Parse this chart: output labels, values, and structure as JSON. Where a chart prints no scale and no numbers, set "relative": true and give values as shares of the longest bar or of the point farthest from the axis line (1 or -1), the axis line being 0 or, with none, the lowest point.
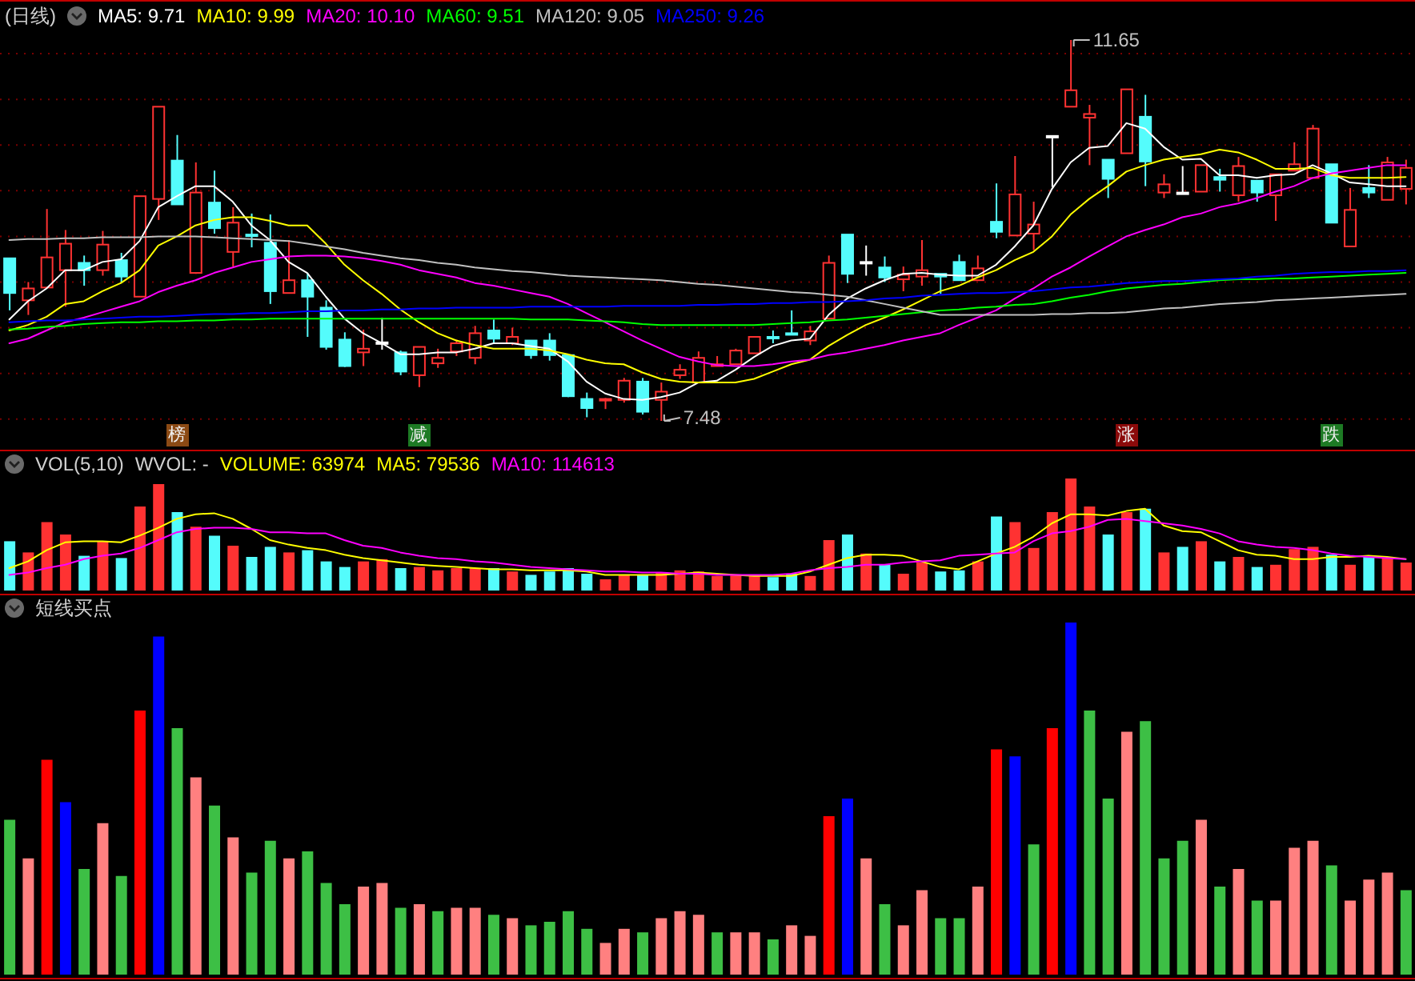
{
  "chart_data": [
    {
      "type": "candlestick",
      "title": "(日线)",
      "legend": "top left",
      "tick_labels": false,
      "grid": "y",
      "categories": [
        null,
        null,
        null,
        null,
        null,
        null,
        null,
        null,
        null,
        null,
        null,
        null,
        null,
        null,
        null,
        null,
        null,
        null,
        null,
        null,
        null,
        null,
        null,
        null,
        null,
        null,
        null,
        null,
        null,
        null,
        null,
        null,
        null,
        null,
        null,
        null,
        null,
        null,
        null,
        null,
        null,
        null,
        null,
        null,
        null,
        null,
        null,
        null,
        null,
        null,
        null,
        null,
        null,
        null,
        null,
        null,
        null,
        null,
        null,
        null,
        null,
        null,
        null,
        null,
        null,
        null,
        null,
        null,
        null,
        null,
        null,
        null,
        null,
        null,
        null,
        null
      ],
      "yticks": [
        {
          "value": 7.5,
          "label": null
        },
        {
          "value": 8,
          "label": null
        },
        {
          "value": 8.5,
          "label": null
        },
        {
          "value": 9,
          "label": null
        },
        {
          "value": 9.5,
          "label": null
        },
        {
          "value": 10,
          "label": null
        },
        {
          "value": 10.5,
          "label": null
        },
        {
          "value": 11,
          "label": null
        },
        {
          "value": 11.5,
          "label": null
        }
      ],
      "ohlc": [
        [
          9.26,
          9.26,
          8.69,
          8.88
        ],
        [
          8.8,
          9.0,
          8.64,
          8.93
        ],
        [
          8.94,
          9.8,
          8.94,
          9.27
        ],
        [
          9.13,
          9.57,
          8.73,
          9.42
        ],
        [
          9.21,
          9.29,
          8.96,
          9.13
        ],
        [
          9.13,
          9.56,
          9.07,
          9.41
        ],
        [
          9.24,
          9.32,
          8.99,
          9.06
        ],
        [
          8.84,
          9.94,
          8.84,
          9.94
        ],
        [
          9.91,
          10.92,
          9.68,
          10.92
        ],
        [
          10.33,
          10.61,
          9.85,
          9.85
        ],
        [
          9.1,
          10.31,
          9.09,
          9.98
        ],
        [
          9.87,
          10.22,
          9.53,
          9.59
        ],
        [
          9.33,
          9.82,
          9.17,
          9.65
        ],
        [
          9.52,
          9.75,
          9.38,
          9.52
        ],
        [
          9.43,
          9.74,
          8.76,
          8.9
        ],
        [
          8.88,
          9.46,
          8.88,
          9.02
        ],
        [
          9.02,
          9.1,
          8.4,
          8.84
        ],
        [
          8.72,
          8.8,
          8.26,
          8.29
        ],
        [
          8.37,
          8.45,
          8.07,
          8.08
        ],
        [
          8.23,
          8.48,
          8.08,
          8.27
        ],
        [
          8.34,
          8.61,
          8.26,
          8.34
        ],
        [
          8.23,
          8.25,
          7.98,
          8.02
        ],
        [
          7.98,
          8.29,
          7.85,
          8.29
        ],
        [
          8.11,
          8.27,
          8.06,
          8.17
        ],
        [
          8.24,
          8.37,
          8.19,
          8.33
        ],
        [
          8.17,
          8.52,
          8.1,
          8.44
        ],
        [
          8.47,
          8.59,
          8.33,
          8.38
        ],
        [
          8.33,
          8.5,
          8.31,
          8.4
        ],
        [
          8.36,
          8.36,
          8.16,
          8.2
        ],
        [
          8.36,
          8.44,
          8.14,
          8.2
        ],
        [
          8.2,
          8.2,
          7.74,
          7.75
        ],
        [
          7.72,
          7.79,
          7.52,
          7.62
        ],
        [
          7.71,
          7.73,
          7.61,
          7.72
        ],
        [
          7.71,
          7.95,
          7.68,
          7.92
        ],
        [
          7.91,
          7.95,
          7.55,
          7.58
        ],
        [
          7.71,
          7.9,
          7.48,
          7.8
        ],
        [
          7.98,
          8.1,
          7.94,
          8.04
        ],
        [
          7.9,
          8.24,
          7.9,
          8.17
        ],
        [
          8.08,
          8.19,
          8.08,
          8.1
        ],
        [
          8.1,
          8.27,
          8.1,
          8.25
        ],
        [
          8.22,
          8.4,
          8.22,
          8.4
        ],
        [
          8.4,
          8.47,
          8.33,
          8.4
        ],
        [
          8.44,
          8.69,
          8.44,
          8.44
        ],
        [
          8.36,
          8.52,
          8.31,
          8.46
        ],
        [
          8.6,
          9.29,
          8.6,
          9.21
        ],
        [
          9.52,
          9.52,
          8.99,
          9.09
        ],
        [
          9.22,
          9.4,
          9.07,
          9.22
        ],
        [
          9.16,
          9.28,
          9.0,
          9.05
        ],
        [
          9.03,
          9.17,
          8.9,
          9.08
        ],
        [
          9.06,
          9.46,
          8.96,
          9.13
        ],
        [
          9.09,
          9.09,
          8.87,
          9.06
        ],
        [
          9.22,
          9.3,
          9.02,
          9.02
        ],
        [
          9.02,
          9.29,
          9.02,
          9.15
        ],
        [
          9.66,
          10.08,
          9.48,
          9.55
        ],
        [
          9.51,
          10.38,
          9.51,
          9.96
        ],
        [
          9.53,
          9.88,
          9.35,
          9.63
        ],
        [
          10.6,
          10.6,
          10.04,
          10.6
        ],
        [
          10.92,
          11.65,
          10.92,
          11.1
        ],
        [
          10.8,
          10.94,
          10.28,
          10.84
        ],
        [
          10.34,
          10.34,
          9.92,
          10.13
        ],
        [
          10.41,
          11.11,
          10.41,
          11.11
        ],
        [
          10.81,
          11.05,
          10.05,
          10.32
        ],
        [
          9.98,
          10.18,
          9.92,
          10.07
        ],
        [
          9.98,
          10.27,
          9.98,
          9.98
        ],
        [
          9.99,
          10.28,
          9.99,
          10.28
        ],
        [
          10.15,
          10.24,
          9.99,
          10.12
        ],
        [
          9.95,
          10.37,
          9.88,
          10.27
        ],
        [
          10.11,
          10.11,
          9.88,
          9.98
        ],
        [
          9.95,
          10.18,
          9.67,
          10.18
        ],
        [
          10.22,
          10.53,
          10.22,
          10.29
        ],
        [
          10.14,
          10.72,
          10.14,
          10.68
        ],
        [
          10.29,
          10.29,
          9.65,
          9.65
        ],
        [
          9.39,
          10.03,
          9.39,
          9.79
        ],
        [
          10.03,
          10.28,
          9.92,
          9.98
        ],
        [
          9.9,
          10.37,
          9.9,
          10.31
        ],
        [
          10.02,
          10.34,
          9.85,
          10.25
        ]
      ],
      "colors": [
        "#54fcfc",
        "#ff3232",
        "#ff3232",
        "#ff3232",
        "#54fcfc",
        "#ff3232",
        "#54fcfc",
        "#ff3232",
        "#ff3232",
        "#54fcfc",
        "#ff3232",
        "#54fcfc",
        "#ff3232",
        "#54fcfc",
        "#54fcfc",
        "#ff3232",
        "#54fcfc",
        "#54fcfc",
        "#54fcfc",
        "#ff3232",
        "#ffffff",
        "#54fcfc",
        "#ff3232",
        "#ff3232",
        "#ff3232",
        "#ff3232",
        "#54fcfc",
        "#ff3232",
        "#54fcfc",
        "#54fcfc",
        "#54fcfc",
        "#54fcfc",
        "#ff3232",
        "#ff3232",
        "#54fcfc",
        "#ff3232",
        "#ff3232",
        "#ff3232",
        "#ff3232",
        "#ff3232",
        "#ff3232",
        "#54fcfc",
        "#54fcfc",
        "#ff3232",
        "#ff3232",
        "#54fcfc",
        "#ffffff",
        "#54fcfc",
        "#ff3232",
        "#ff3232",
        "#54fcfc",
        "#54fcfc",
        "#ff3232",
        "#54fcfc",
        "#ff3232",
        "#ff3232",
        "#ffffff",
        "#ff3232",
        "#ff3232",
        "#54fcfc",
        "#ff3232",
        "#54fcfc",
        "#ff3232",
        "#ffffff",
        "#ff3232",
        "#54fcfc",
        "#ff3232",
        "#54fcfc",
        "#ff3232",
        "#ff3232",
        "#ff3232",
        "#54fcfc",
        "#ff3232",
        "#54fcfc",
        "#ff3232",
        "#ff3232"
      ],
      "series": [
        {
          "name": "MA5: 9.71",
          "type": "line",
          "color": "#ffffff",
          "values": [
            8.59,
            8.79,
            8.93,
            9.13,
            9.13,
            9.22,
            9.25,
            9.45,
            9.82,
            9.94,
            10.05,
            10.05,
            9.88,
            9.62,
            9.46,
            9.22,
            9.1,
            8.84,
            8.6,
            8.44,
            8.33,
            8.21,
            8.21,
            8.23,
            8.23,
            8.27,
            8.33,
            8.33,
            8.3,
            8.27,
            8.13,
            7.91,
            7.78,
            7.72,
            7.71,
            7.74,
            7.79,
            7.9,
            7.92,
            8.04,
            8.18,
            8.3,
            8.36,
            8.38,
            8.64,
            8.82,
            8.93,
            9.02,
            9.09,
            9.1,
            9.08,
            9.07,
            9.07,
            9.19,
            9.39,
            9.62,
            10.02,
            10.31,
            10.47,
            10.49,
            10.74,
            10.68,
            10.48,
            10.34,
            10.35,
            10.17,
            10.17,
            10.14,
            10.17,
            10.18,
            10.28,
            10.19,
            10.09,
            10.07,
            10.05,
            10.05
          ]
        },
        {
          "name": "MA10: 9.99",
          "type": "line",
          "color": "#ffff00",
          "values": [
            8.47,
            8.53,
            8.62,
            8.76,
            8.79,
            8.9,
            8.99,
            9.13,
            9.4,
            9.5,
            9.62,
            9.68,
            9.71,
            9.71,
            9.67,
            9.62,
            9.62,
            9.42,
            9.19,
            9.02,
            8.87,
            8.7,
            8.56,
            8.44,
            8.36,
            8.31,
            8.27,
            8.27,
            8.27,
            8.25,
            8.21,
            8.15,
            8.11,
            8.1,
            8.01,
            7.94,
            7.91,
            7.9,
            7.9,
            7.9,
            7.94,
            8.02,
            8.1,
            8.15,
            8.3,
            8.42,
            8.53,
            8.61,
            8.7,
            8.8,
            8.9,
            8.96,
            9.05,
            9.13,
            9.24,
            9.33,
            9.5,
            9.74,
            9.91,
            10.05,
            10.21,
            10.28,
            10.34,
            10.37,
            10.4,
            10.45,
            10.42,
            10.34,
            10.24,
            10.24,
            10.25,
            10.17,
            10.14,
            10.14,
            10.14,
            10.15
          ]
        },
        {
          "name": "MA20: 10.10",
          "type": "line",
          "color": "#ff00ff",
          "values": [
            8.33,
            8.38,
            8.47,
            8.56,
            8.61,
            8.67,
            8.73,
            8.79,
            8.89,
            8.96,
            9.02,
            9.1,
            9.16,
            9.22,
            9.25,
            9.28,
            9.29,
            9.29,
            9.28,
            9.26,
            9.23,
            9.19,
            9.13,
            9.09,
            9.05,
            8.99,
            8.96,
            8.92,
            8.88,
            8.84,
            8.76,
            8.66,
            8.56,
            8.46,
            8.36,
            8.27,
            8.18,
            8.13,
            8.09,
            8.08,
            8.08,
            8.1,
            8.13,
            8.15,
            8.2,
            8.23,
            8.27,
            8.31,
            8.36,
            8.4,
            8.44,
            8.53,
            8.61,
            8.69,
            8.82,
            8.93,
            9.06,
            9.16,
            9.28,
            9.39,
            9.5,
            9.57,
            9.63,
            9.71,
            9.75,
            9.82,
            9.86,
            9.92,
            9.99,
            10.05,
            10.14,
            10.19,
            10.22,
            10.25,
            10.28,
            10.28
          ]
        },
        {
          "name": "MA60: 9.51",
          "type": "line",
          "color": "#00ff00",
          "values": [
            8.48,
            8.49,
            8.51,
            8.52,
            8.54,
            8.55,
            8.56,
            8.56,
            8.57,
            8.57,
            8.58,
            8.58,
            8.59,
            8.59,
            8.6,
            8.6,
            8.6,
            8.6,
            8.6,
            8.6,
            8.6,
            8.6,
            8.6,
            8.6,
            8.6,
            8.6,
            8.6,
            8.6,
            8.59,
            8.59,
            8.59,
            8.58,
            8.57,
            8.56,
            8.54,
            8.53,
            8.53,
            8.53,
            8.53,
            8.53,
            8.53,
            8.54,
            8.55,
            8.56,
            8.58,
            8.59,
            8.61,
            8.63,
            8.65,
            8.67,
            8.69,
            8.7,
            8.72,
            8.73,
            8.75,
            8.76,
            8.79,
            8.83,
            8.86,
            8.9,
            8.93,
            8.95,
            8.97,
            8.98,
            9.0,
            9.02,
            9.03,
            9.03,
            9.04,
            9.04,
            9.05,
            9.06,
            9.07,
            9.08,
            9.09,
            9.1
          ]
        },
        {
          "name": "MA120: 9.05",
          "type": "line",
          "color": "#c0c0c0",
          "values": [
            9.46,
            9.47,
            9.47,
            9.48,
            9.48,
            9.49,
            9.49,
            9.49,
            9.5,
            9.5,
            9.5,
            9.49,
            9.48,
            9.47,
            9.46,
            9.45,
            9.42,
            9.39,
            9.36,
            9.32,
            9.29,
            9.26,
            9.24,
            9.21,
            9.19,
            9.16,
            9.14,
            9.12,
            9.11,
            9.09,
            9.07,
            9.06,
            9.05,
            9.04,
            9.03,
            9.02,
            9.0,
            8.98,
            8.97,
            8.95,
            8.93,
            8.91,
            8.89,
            8.88,
            8.86,
            8.84,
            8.8,
            8.76,
            8.72,
            8.68,
            8.64,
            8.64,
            8.64,
            8.64,
            8.64,
            8.64,
            8.65,
            8.65,
            8.66,
            8.66,
            8.67,
            8.69,
            8.71,
            8.72,
            8.74,
            8.76,
            8.77,
            8.78,
            8.8,
            8.81,
            8.82,
            8.83,
            8.84,
            8.85,
            8.86,
            8.87
          ]
        },
        {
          "name": "MA250: 9.26",
          "type": "line",
          "color": "#0000ff",
          "values": [
            8.56,
            8.57,
            8.58,
            8.58,
            8.59,
            8.6,
            8.61,
            8.62,
            8.62,
            8.63,
            8.64,
            8.65,
            8.65,
            8.66,
            8.66,
            8.67,
            8.68,
            8.68,
            8.69,
            8.69,
            8.7,
            8.7,
            8.71,
            8.71,
            8.72,
            8.72,
            8.72,
            8.72,
            8.73,
            8.73,
            8.73,
            8.73,
            8.73,
            8.74,
            8.74,
            8.74,
            8.74,
            8.75,
            8.75,
            8.76,
            8.76,
            8.77,
            8.77,
            8.78,
            8.78,
            8.79,
            8.8,
            8.82,
            8.83,
            8.85,
            8.86,
            8.87,
            8.88,
            8.88,
            8.89,
            8.9,
            8.92,
            8.94,
            8.95,
            8.97,
            8.99,
            9.0,
            9.01,
            9.01,
            9.02,
            9.03,
            9.04,
            9.06,
            9.07,
            9.09,
            9.1,
            9.11,
            9.11,
            9.12,
            9.12,
            9.13
          ]
        }
      ],
      "annotations": [
        "11.65",
        "7.48",
        "榜",
        "减",
        "涨",
        "跌"
      ]
    },
    {
      "type": "bar",
      "title": "VOL(5,10)",
      "legend": "top left",
      "tick_labels": false,
      "relative": true,
      "categories": [
        null,
        null,
        null,
        null,
        null,
        null,
        null,
        null,
        null,
        null,
        null,
        null,
        null,
        null,
        null,
        null,
        null,
        null,
        null,
        null,
        null,
        null,
        null,
        null,
        null,
        null,
        null,
        null,
        null,
        null,
        null,
        null,
        null,
        null,
        null,
        null,
        null,
        null,
        null,
        null,
        null,
        null,
        null,
        null,
        null,
        null,
        null,
        null,
        null,
        null,
        null,
        null,
        null,
        null,
        null,
        null,
        null,
        null,
        null,
        null,
        null,
        null,
        null,
        null,
        null,
        null,
        null,
        null,
        null,
        null,
        null,
        null,
        null,
        null,
        null,
        null
      ],
      "annotations": [
        "WVOL: -",
        "VOLUME: 63974"
      ],
      "series": [
        {
          "type": "bar",
          "values": [
            0.44,
            0.34,
            0.61,
            0.5,
            0.31,
            0.44,
            0.29,
            0.75,
            0.95,
            0.7,
            0.57,
            0.49,
            0.4,
            0.3,
            0.39,
            0.34,
            0.36,
            0.26,
            0.21,
            0.26,
            0.28,
            0.2,
            0.21,
            0.18,
            0.2,
            0.2,
            0.2,
            0.17,
            0.14,
            0.17,
            0.2,
            0.15,
            0.1,
            0.14,
            0.14,
            0.16,
            0.18,
            0.17,
            0.13,
            0.14,
            0.14,
            0.12,
            0.15,
            0.13,
            0.45,
            0.5,
            0.33,
            0.23,
            0.15,
            0.25,
            0.17,
            0.18,
            0.26,
            0.66,
            0.61,
            0.38,
            0.7,
            1.0,
            0.75,
            0.5,
            0.7,
            0.73,
            0.34,
            0.39,
            0.44,
            0.26,
            0.3,
            0.21,
            0.23,
            0.37,
            0.39,
            0.32,
            0.23,
            0.3,
            0.29,
            0.25
          ],
          "colors": [
            "#54fcfc",
            "#ff3232",
            "#ff3232",
            "#ff3232",
            "#54fcfc",
            "#ff3232",
            "#54fcfc",
            "#ff3232",
            "#ff3232",
            "#54fcfc",
            "#ff3232",
            "#54fcfc",
            "#ff3232",
            "#54fcfc",
            "#54fcfc",
            "#ff3232",
            "#54fcfc",
            "#54fcfc",
            "#54fcfc",
            "#ff3232",
            "#ff3232",
            "#54fcfc",
            "#ff3232",
            "#ff3232",
            "#ff3232",
            "#ff3232",
            "#54fcfc",
            "#ff3232",
            "#54fcfc",
            "#54fcfc",
            "#54fcfc",
            "#54fcfc",
            "#ff3232",
            "#ff3232",
            "#54fcfc",
            "#ff3232",
            "#ff3232",
            "#ff3232",
            "#ff3232",
            "#ff3232",
            "#ff3232",
            "#54fcfc",
            "#54fcfc",
            "#ff3232",
            "#ff3232",
            "#54fcfc",
            "#ff3232",
            "#54fcfc",
            "#ff3232",
            "#ff3232",
            "#54fcfc",
            "#54fcfc",
            "#ff3232",
            "#54fcfc",
            "#ff3232",
            "#ff3232",
            "#ff3232",
            "#ff3232",
            "#ff3232",
            "#54fcfc",
            "#ff3232",
            "#54fcfc",
            "#ff3232",
            "#54fcfc",
            "#ff3232",
            "#54fcfc",
            "#ff3232",
            "#54fcfc",
            "#ff3232",
            "#ff3232",
            "#ff3232",
            "#54fcfc",
            "#ff3232",
            "#54fcfc",
            "#ff3232",
            "#ff3232"
          ]
        },
        {
          "name": "MA5: 79536",
          "type": "line",
          "color": "#ffff00",
          "values": [
            0.2,
            0.26,
            0.36,
            0.43,
            0.44,
            0.44,
            0.43,
            0.49,
            0.56,
            0.64,
            0.68,
            0.69,
            0.64,
            0.55,
            0.45,
            0.41,
            0.38,
            0.36,
            0.32,
            0.29,
            0.27,
            0.25,
            0.23,
            0.22,
            0.21,
            0.2,
            0.19,
            0.19,
            0.18,
            0.18,
            0.18,
            0.17,
            0.14,
            0.14,
            0.14,
            0.14,
            0.15,
            0.16,
            0.15,
            0.14,
            0.13,
            0.13,
            0.13,
            0.17,
            0.23,
            0.29,
            0.32,
            0.32,
            0.31,
            0.26,
            0.21,
            0.19,
            0.26,
            0.33,
            0.39,
            0.48,
            0.6,
            0.68,
            0.68,
            0.67,
            0.71,
            0.73,
            0.58,
            0.53,
            0.52,
            0.44,
            0.36,
            0.32,
            0.31,
            0.28,
            0.28,
            0.3,
            0.3,
            0.31,
            0.3,
            0.28
          ]
        },
        {
          "name": "MA10: 114613",
          "type": "line",
          "color": "#ff00ff",
          "values": [
            0.14,
            0.16,
            0.2,
            0.23,
            0.28,
            0.31,
            0.33,
            0.38,
            0.45,
            0.52,
            0.55,
            0.56,
            0.56,
            0.55,
            0.52,
            0.52,
            0.51,
            0.51,
            0.45,
            0.4,
            0.38,
            0.34,
            0.31,
            0.29,
            0.28,
            0.26,
            0.25,
            0.23,
            0.21,
            0.2,
            0.19,
            0.18,
            0.17,
            0.17,
            0.16,
            0.16,
            0.15,
            0.15,
            0.14,
            0.14,
            0.14,
            0.14,
            0.15,
            0.18,
            0.2,
            0.21,
            0.23,
            0.23,
            0.25,
            0.26,
            0.27,
            0.31,
            0.32,
            0.33,
            0.34,
            0.44,
            0.51,
            0.53,
            0.57,
            0.63,
            0.64,
            0.62,
            0.6,
            0.58,
            0.55,
            0.51,
            0.44,
            0.41,
            0.39,
            0.38,
            0.36,
            0.33,
            0.31,
            0.3,
            0.29,
            0.28
          ]
        }
      ]
    },
    {
      "type": "bar",
      "title": "短线买点",
      "tick_labels": false,
      "relative": true,
      "categories": [
        null,
        null,
        null,
        null,
        null,
        null,
        null,
        null,
        null,
        null,
        null,
        null,
        null,
        null,
        null,
        null,
        null,
        null,
        null,
        null,
        null,
        null,
        null,
        null,
        null,
        null,
        null,
        null,
        null,
        null,
        null,
        null,
        null,
        null,
        null,
        null,
        null,
        null,
        null,
        null,
        null,
        null,
        null,
        null,
        null,
        null,
        null,
        null,
        null,
        null,
        null,
        null,
        null,
        null,
        null,
        null,
        null,
        null,
        null,
        null,
        null,
        null,
        null,
        null,
        null,
        null,
        null,
        null,
        null,
        null,
        null,
        null,
        null,
        null,
        null,
        null
      ],
      "values": [
        0.44,
        0.33,
        0.61,
        0.49,
        0.3,
        0.43,
        0.28,
        0.75,
        0.96,
        0.7,
        0.56,
        0.48,
        0.39,
        0.29,
        0.38,
        0.33,
        0.35,
        0.26,
        0.2,
        0.25,
        0.26,
        0.19,
        0.2,
        0.18,
        0.19,
        0.19,
        0.17,
        0.16,
        0.14,
        0.15,
        0.18,
        0.13,
        0.09,
        0.13,
        0.12,
        0.16,
        0.18,
        0.17,
        0.12,
        0.12,
        0.12,
        0.1,
        0.14,
        0.11,
        0.45,
        0.5,
        0.33,
        0.2,
        0.14,
        0.24,
        0.16,
        0.16,
        0.25,
        0.64,
        0.62,
        0.37,
        0.7,
        1.0,
        0.75,
        0.5,
        0.69,
        0.72,
        0.33,
        0.38,
        0.44,
        0.25,
        0.3,
        0.21,
        0.21,
        0.36,
        0.38,
        0.31,
        0.21,
        0.27,
        0.29,
        0.24
      ],
      "colors": [
        "#3dbf45",
        "#ff8080",
        "#ff0000",
        "#0000ff",
        "#3dbf45",
        "#ff8080",
        "#3dbf45",
        "#ff0000",
        "#0000ff",
        "#3dbf45",
        "#ff8080",
        "#3dbf45",
        "#ff8080",
        "#3dbf45",
        "#3dbf45",
        "#ff8080",
        "#3dbf45",
        "#3dbf45",
        "#3dbf45",
        "#ff8080",
        "#ff8080",
        "#3dbf45",
        "#ff8080",
        "#3dbf45",
        "#ff8080",
        "#ff8080",
        "#3dbf45",
        "#ff8080",
        "#3dbf45",
        "#3dbf45",
        "#3dbf45",
        "#3dbf45",
        "#ff8080",
        "#ff8080",
        "#3dbf45",
        "#ff8080",
        "#ff8080",
        "#ff8080",
        "#3dbf45",
        "#ff8080",
        "#ff8080",
        "#3dbf45",
        "#ff8080",
        "#ff8080",
        "#ff0000",
        "#0000ff",
        "#ff8080",
        "#3dbf45",
        "#ff8080",
        "#ff8080",
        "#3dbf45",
        "#3dbf45",
        "#ff8080",
        "#ff0000",
        "#0000ff",
        "#3dbf45",
        "#ff0000",
        "#0000ff",
        "#3dbf45",
        "#3dbf45",
        "#ff8080",
        "#3dbf45",
        "#3dbf45",
        "#3dbf45",
        "#ff8080",
        "#3dbf45",
        "#ff8080",
        "#3dbf45",
        "#ff8080",
        "#ff8080",
        "#ff8080",
        "#3dbf45",
        "#ff8080",
        "#ff8080",
        "#ff8080",
        "#3dbf45"
      ]
    }
  ]
}
